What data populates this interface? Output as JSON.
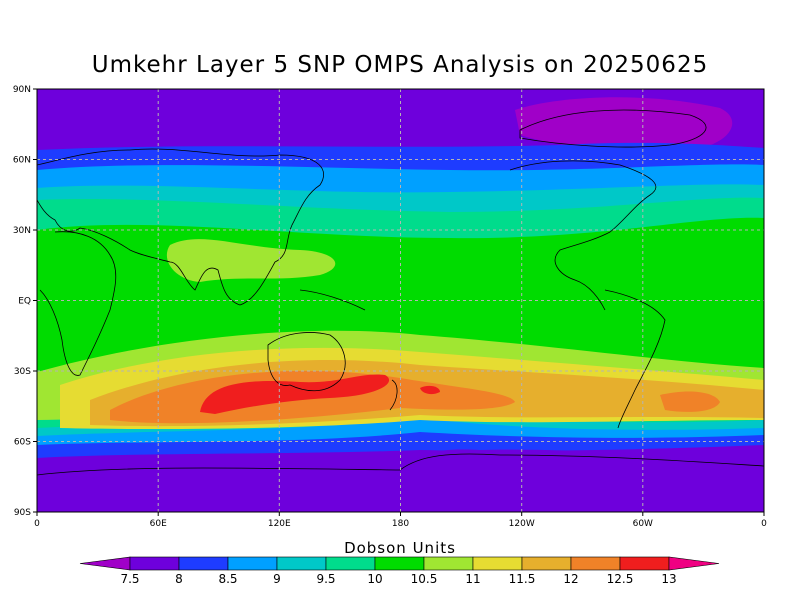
{
  "title": "Umkehr Layer 5 SNP OMPS Analysis on 20250625",
  "lat_ticks": [
    "90N",
    "60N",
    "30N",
    "EQ",
    "30S",
    "60S",
    "90S"
  ],
  "lon_ticks": [
    "0",
    "60E",
    "120E",
    "180",
    "120W",
    "60W",
    "0"
  ],
  "colorbar": {
    "title": "Dobson Units",
    "levels": [
      "7.5",
      "8",
      "8.5",
      "9",
      "9.5",
      "10",
      "10.5",
      "11",
      "11.5",
      "12",
      "12.5",
      "13"
    ],
    "colors": [
      "#a000c8",
      "#6e00dc",
      "#1e3cff",
      "#00a0ff",
      "#00c8c8",
      "#00dc8c",
      "#00dc00",
      "#a0e632",
      "#e6dc32",
      "#e6af2d",
      "#f08228",
      "#f01e1e",
      "#f00082"
    ]
  },
  "chart_data": {
    "type": "heatmap",
    "title": "Umkehr Layer 5 SNP OMPS Analysis on 20250625",
    "colorbar_label": "Dobson Units",
    "x_range": [
      "0",
      "0"
    ],
    "y_range": [
      "90S",
      "90N"
    ],
    "bands": [
      {
        "lat_range": [
          75,
          90
        ],
        "value": "< 8"
      },
      {
        "lat_range": [
          62,
          75
        ],
        "value": "8-9"
      },
      {
        "lat_range": [
          45,
          62
        ],
        "value": "9-10"
      },
      {
        "lat_range": [
          -10,
          45
        ],
        "value": "10-11"
      },
      {
        "lat_range": [
          -30,
          -10
        ],
        "value": "10.5-11.5"
      },
      {
        "lat_range": [
          -50,
          -30
        ],
        "value": "12-13"
      },
      {
        "lat_range": [
          -62,
          -50
        ],
        "value": "9-11"
      },
      {
        "lat_range": [
          -90,
          -62
        ],
        "value": "< 8.5"
      }
    ]
  }
}
